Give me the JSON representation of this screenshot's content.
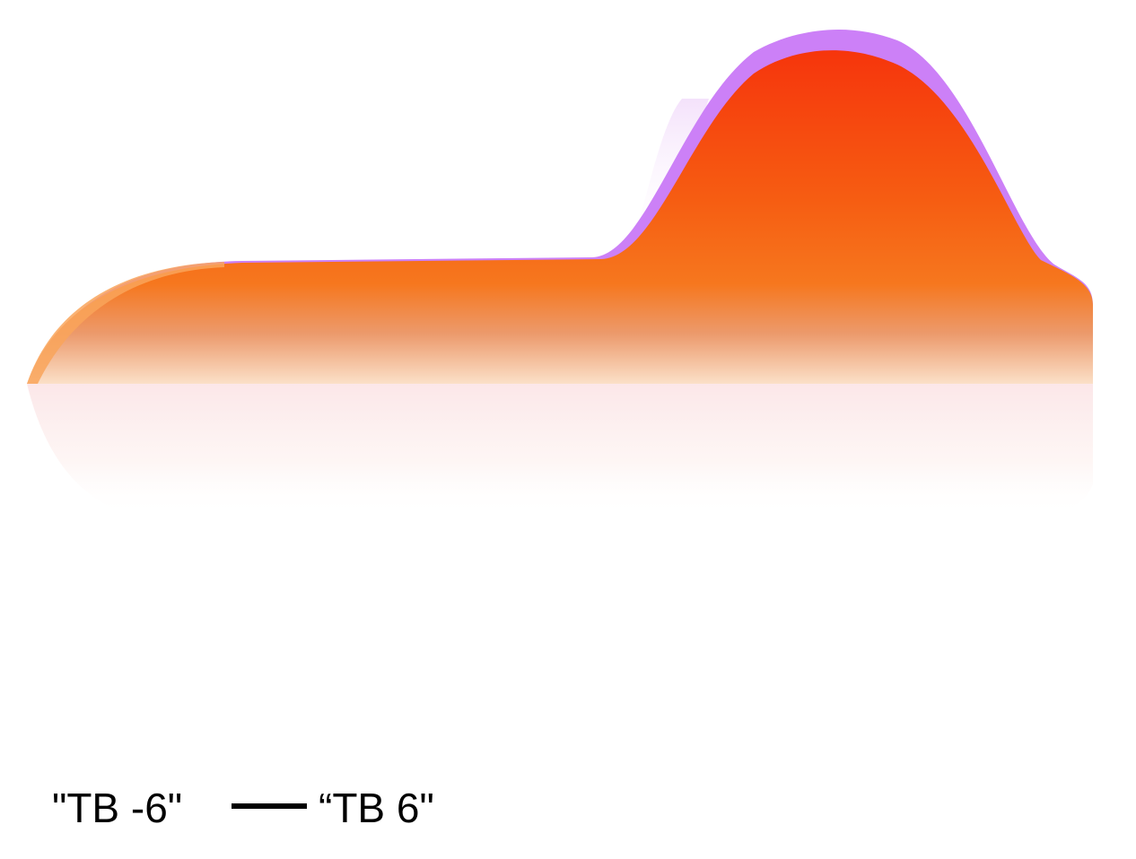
{
  "labels": {
    "start": "\"TB -6\"",
    "end": "“TB 6\""
  },
  "colors": {
    "purple_layer": "#cc80f7",
    "orange_top": "#f63a0d",
    "orange_mid": "#f6731d",
    "orange_fade": "#f8c9a5",
    "reflection": "#fdeee8"
  }
}
